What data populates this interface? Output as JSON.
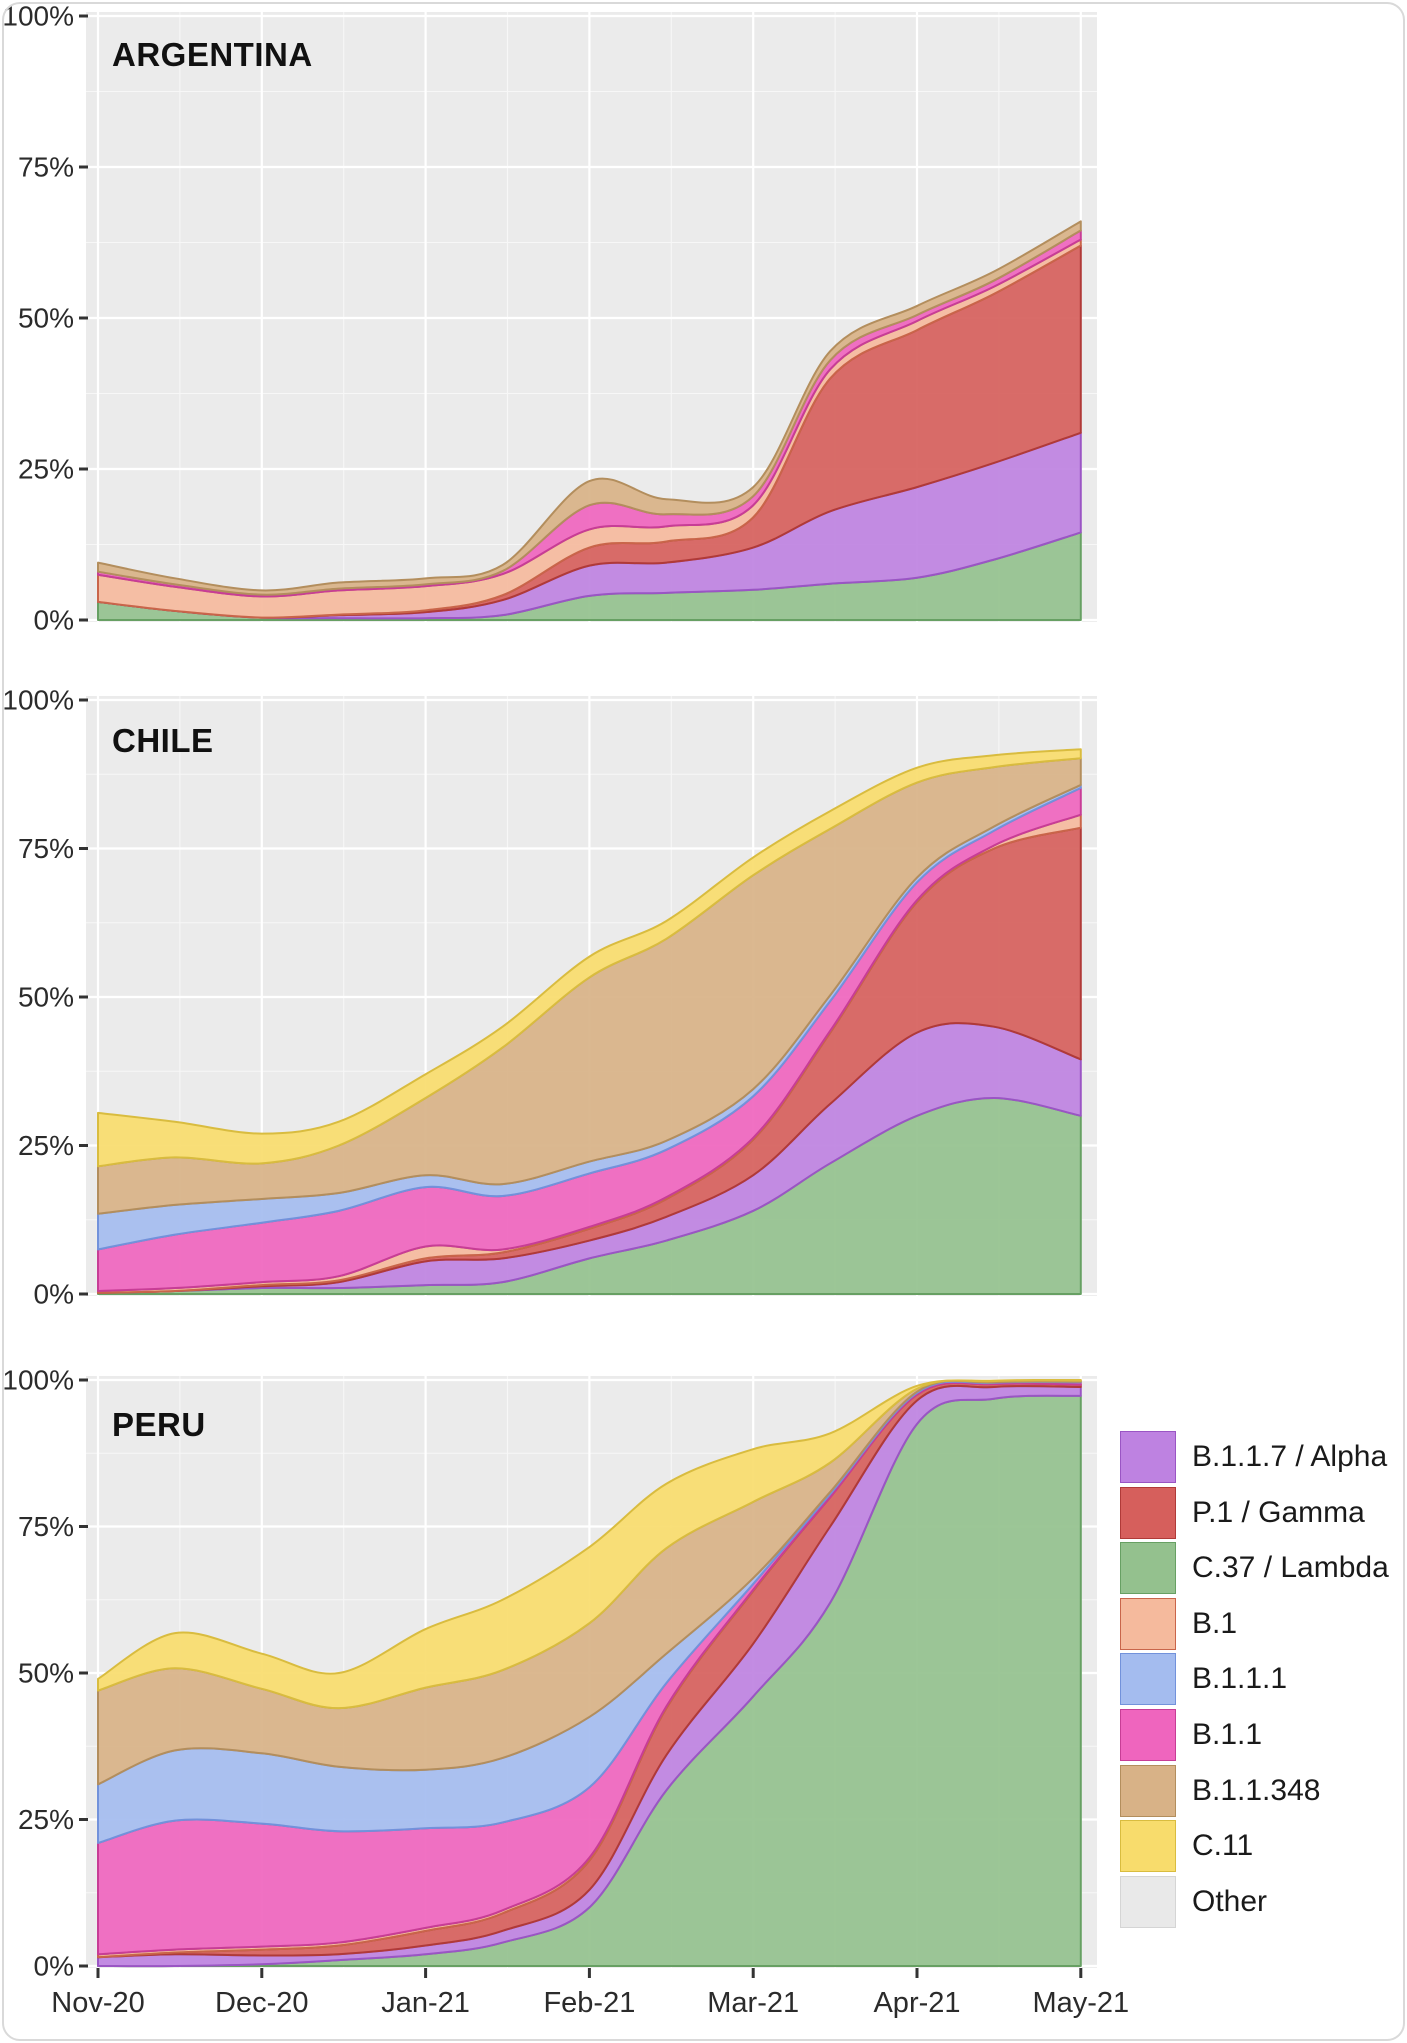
{
  "figure": {
    "type": "small-multiples stacked area chart",
    "description": "SARS-CoV-2 lineage frequency over time by country"
  },
  "colors": {
    "alpha": {
      "fill": "#BE82E1",
      "stroke": "#9A55C4"
    },
    "gamma": {
      "fill": "#D65F5C",
      "stroke": "#B03A38"
    },
    "lambda": {
      "fill": "#94C18E",
      "stroke": "#67A063"
    },
    "b1": {
      "fill": "#F5BA9D",
      "stroke": "#C9654A"
    },
    "b111": {
      "fill": "#A4BCEF",
      "stroke": "#7292DB"
    },
    "b11": {
      "fill": "#EF65BE",
      "stroke": "#C73D96"
    },
    "b11348": {
      "fill": "#D8B287",
      "stroke": "#B38E5D"
    },
    "c11": {
      "fill": "#F8DC6C",
      "stroke": "#D9BC3F"
    },
    "other": {
      "fill": "#E9E9E9",
      "stroke": "#D5D5D5"
    },
    "panel_bg": "#EBEBEB",
    "grid": "#FFFFFF",
    "tick": "#333333",
    "axis_text": "#2b2b2b"
  },
  "axes": {
    "y_ticks": [
      "0%",
      "25%",
      "50%",
      "75%",
      "100%"
    ],
    "y_tick_values": [
      0,
      25,
      50,
      75,
      100
    ],
    "x_ticks": [
      "Nov-20",
      "Dec-20",
      "Jan-21",
      "Feb-21",
      "Mar-21",
      "Apr-21",
      "May-21"
    ],
    "grid": "on",
    "y_range": [
      0,
      100
    ]
  },
  "legend": {
    "position": "right-bottom",
    "items": [
      {
        "label": "B.1.1.7 / Alpha",
        "color_key": "alpha"
      },
      {
        "label": "P.1 / Gamma",
        "color_key": "gamma"
      },
      {
        "label": "C.37 / Lambda",
        "color_key": "lambda"
      },
      {
        "label": "B.1",
        "color_key": "b1"
      },
      {
        "label": "B.1.1.1",
        "color_key": "b111"
      },
      {
        "label": "B.1.1",
        "color_key": "b11"
      },
      {
        "label": "B.1.1.348",
        "color_key": "b11348"
      },
      {
        "label": "C.11",
        "color_key": "c11"
      },
      {
        "label": "Other",
        "color_key": "other"
      }
    ]
  },
  "chart_data": [
    {
      "title": "ARGENTINA",
      "type": "area",
      "stacked": true,
      "y_unit": "percent",
      "x_months_from_nov20": [
        0,
        0.47,
        1,
        1.47,
        2,
        2.47,
        3,
        3.47,
        4,
        4.47,
        5,
        5.47,
        6
      ],
      "x_dates": [
        "Nov-01",
        "Nov-15",
        "Dec-01",
        "Dec-15",
        "Jan-01",
        "Jan-15",
        "Feb-01",
        "Feb-15",
        "Mar-01",
        "Mar-15",
        "Apr-01",
        "Apr-15",
        "May-01"
      ],
      "series": [
        {
          "name": "C.37 / Lambda",
          "color_key": "lambda",
          "values": [
            3,
            1.5,
            0.4,
            0.3,
            0.3,
            0.8,
            4,
            4.5,
            5,
            6,
            7,
            10,
            14.5
          ]
        },
        {
          "name": "B.1.1.7 / Alpha",
          "color_key": "alpha",
          "values": [
            0,
            0,
            0,
            0.5,
            1,
            2.5,
            5,
            5,
            7,
            12,
            15,
            16,
            16.5
          ]
        },
        {
          "name": "P.1 / Gamma",
          "color_key": "gamma",
          "values": [
            0,
            0,
            0,
            0.1,
            0.3,
            0.8,
            3,
            3.5,
            5,
            22,
            26,
            28,
            31
          ]
        },
        {
          "name": "B.1",
          "color_key": "b1",
          "values": [
            4.5,
            4,
            3.5,
            4,
            4,
            3.5,
            3,
            2.5,
            2,
            1.5,
            1.5,
            1.2,
            1
          ]
        },
        {
          "name": "B.1.1",
          "color_key": "b11",
          "values": [
            0.5,
            0.4,
            0.3,
            0.3,
            0.3,
            0.5,
            4,
            2,
            1.5,
            1.5,
            1,
            1,
            1.5
          ]
        },
        {
          "name": "B.1.1.1",
          "color_key": "b111",
          "values": [
            0,
            0,
            0,
            0,
            0,
            0,
            0,
            0,
            0,
            0,
            0,
            0,
            0
          ]
        },
        {
          "name": "B.1.1.348",
          "color_key": "b11348",
          "values": [
            1.5,
            1,
            0.7,
            1,
            1,
            1,
            4,
            2.5,
            1.5,
            1.5,
            1.5,
            1.5,
            1.5
          ]
        },
        {
          "name": "C.11",
          "color_key": "c11",
          "values": [
            0,
            0,
            0,
            0,
            0,
            0,
            0,
            0,
            0,
            0,
            0,
            0,
            0
          ]
        }
      ],
      "other_note": "Other = remainder up to 100%, drawn as panel background"
    },
    {
      "title": "CHILE",
      "type": "area",
      "stacked": true,
      "y_unit": "percent",
      "x_months_from_nov20": [
        0,
        0.47,
        1,
        1.47,
        2,
        2.47,
        3,
        3.47,
        4,
        4.47,
        5,
        5.47,
        6
      ],
      "x_dates": [
        "Nov-01",
        "Nov-15",
        "Dec-01",
        "Dec-15",
        "Jan-01",
        "Jan-15",
        "Feb-01",
        "Feb-15",
        "Mar-01",
        "Mar-15",
        "Apr-01",
        "Apr-15",
        "May-01"
      ],
      "series": [
        {
          "name": "C.37 / Lambda",
          "color_key": "lambda",
          "values": [
            0.2,
            0.5,
            1,
            1,
            1.5,
            2,
            6,
            9,
            14,
            22,
            30,
            33,
            30
          ]
        },
        {
          "name": "B.1.1.7 / Alpha",
          "color_key": "alpha",
          "values": [
            0,
            0,
            0.3,
            1,
            4,
            4,
            3,
            4,
            6,
            10,
            14,
            12,
            9.5
          ]
        },
        {
          "name": "P.1 / Gamma",
          "color_key": "gamma",
          "values": [
            0,
            0,
            0.2,
            0.3,
            0.5,
            1,
            2,
            3,
            6,
            12,
            22,
            30,
            39
          ]
        },
        {
          "name": "B.1",
          "color_key": "b1",
          "values": [
            0.3,
            0.5,
            0.5,
            0.7,
            2,
            0.5,
            0.3,
            0.3,
            0.3,
            0.3,
            0.3,
            0.5,
            2.2
          ]
        },
        {
          "name": "B.1.1",
          "color_key": "b11",
          "values": [
            7,
            9,
            10,
            11,
            10,
            9,
            9,
            8,
            7,
            5,
            3,
            2.5,
            4.5
          ]
        },
        {
          "name": "B.1.1.1",
          "color_key": "b111",
          "values": [
            6,
            5,
            4,
            3,
            2,
            2,
            2,
            1.5,
            1.2,
            1,
            0.8,
            0.7,
            0.5
          ]
        },
        {
          "name": "B.1.1.348",
          "color_key": "b11348",
          "values": [
            8,
            8,
            6,
            8,
            13,
            23,
            31,
            34,
            36,
            28,
            16,
            10,
            4.5
          ]
        },
        {
          "name": "C.11",
          "color_key": "c11",
          "values": [
            9,
            6,
            5,
            4,
            4,
            3.5,
            3.5,
            3,
            3,
            3,
            2.5,
            2,
            1.5
          ]
        }
      ],
      "other_note": "Other = remainder up to 100%, drawn as panel background"
    },
    {
      "title": "PERU",
      "type": "area",
      "stacked": true,
      "y_unit": "percent",
      "x_months_from_nov20": [
        0,
        0.47,
        1,
        1.47,
        2,
        2.47,
        3,
        3.47,
        4,
        4.47,
        5,
        5.47,
        6
      ],
      "x_dates": [
        "Nov-01",
        "Nov-15",
        "Dec-01",
        "Dec-15",
        "Jan-01",
        "Jan-15",
        "Feb-01",
        "Feb-15",
        "Mar-01",
        "Mar-15",
        "Apr-01",
        "Apr-15",
        "May-01"
      ],
      "series": [
        {
          "name": "C.37 / Lambda",
          "color_key": "lambda",
          "values": [
            0,
            0,
            0.3,
            1,
            2,
            4,
            10,
            30,
            46,
            62,
            92.5,
            96.8,
            97.3
          ]
        },
        {
          "name": "B.1.1.7 / Alpha",
          "color_key": "alpha",
          "values": [
            1.5,
            2,
            1.5,
            1,
            1.5,
            2,
            3,
            6,
            9,
            13,
            4,
            2,
            1.5
          ]
        },
        {
          "name": "P.1 / Gamma",
          "color_key": "gamma",
          "values": [
            0,
            0.3,
            1,
            1.5,
            2.5,
            3,
            5,
            8,
            9,
            5,
            1,
            0.5,
            0.4
          ]
        },
        {
          "name": "B.1",
          "color_key": "b1",
          "values": [
            0.5,
            0.5,
            0.5,
            0.5,
            0.5,
            0.5,
            0.5,
            0.3,
            0.2,
            0,
            0,
            0,
            0
          ]
        },
        {
          "name": "B.1.1",
          "color_key": "b11",
          "values": [
            19,
            22,
            21,
            19,
            17,
            15,
            12,
            4,
            1,
            0.5,
            0.3,
            0.2,
            0.4
          ]
        },
        {
          "name": "B.1.1.1",
          "color_key": "b111",
          "values": [
            10,
            12,
            12,
            11,
            10,
            11,
            12,
            5,
            1,
            0.4,
            0.2,
            0.1,
            0.1
          ]
        },
        {
          "name": "B.1.1.348",
          "color_key": "b11348",
          "values": [
            16,
            14,
            11,
            10,
            14,
            15,
            16,
            18,
            13,
            5,
            0.5,
            0.2,
            0.2
          ]
        },
        {
          "name": "C.11",
          "color_key": "c11",
          "values": [
            2,
            6,
            6,
            6,
            10,
            12,
            13,
            11,
            9,
            5,
            0.5,
            0.1,
            0.1
          ]
        }
      ],
      "other_note": "Other = remainder up to 100%, drawn as panel background"
    }
  ]
}
